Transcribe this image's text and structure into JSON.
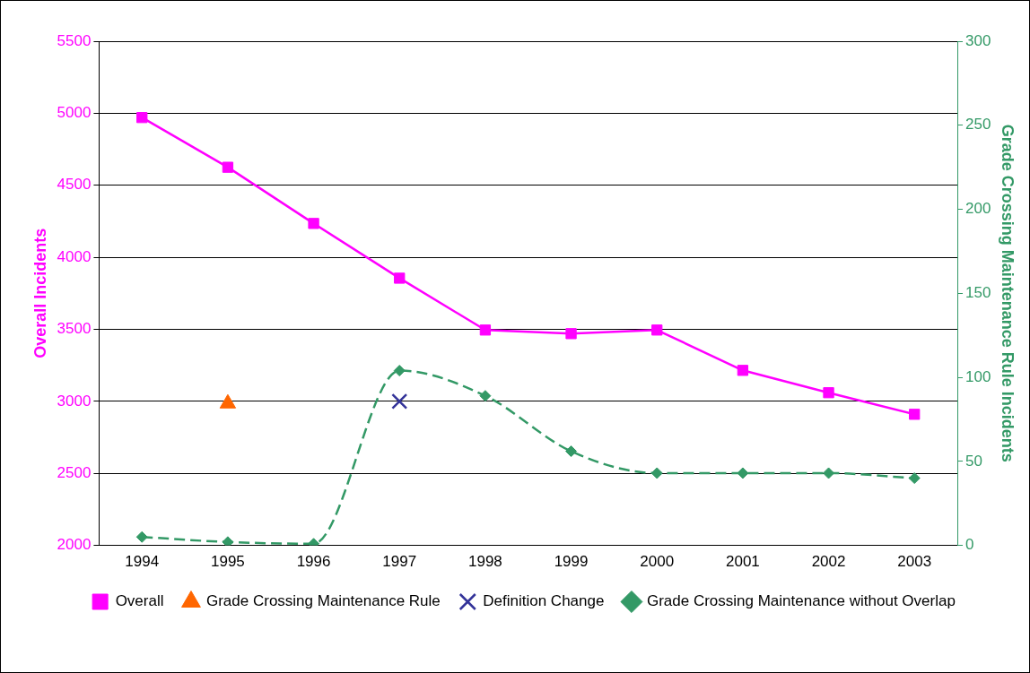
{
  "chart_data": {
    "type": "line",
    "categories": [
      "1994",
      "1995",
      "1996",
      "1997",
      "1998",
      "1999",
      "2000",
      "2001",
      "2002",
      "2003"
    ],
    "ylabel": "Overall Incidents",
    "y2label": "Grade Crossing Maintenance Rule Incidents",
    "ylim": [
      2000,
      5500
    ],
    "yticks": [
      2000,
      2500,
      3000,
      3500,
      4000,
      4500,
      5000,
      5500
    ],
    "y2lim": [
      0,
      300
    ],
    "y2ticks": [
      0,
      50,
      100,
      150,
      200,
      250,
      300
    ],
    "grid": "y",
    "legend": "bottom",
    "series": [
      {
        "name": "Overall",
        "color": "#ff00ff",
        "marker": "square",
        "line_style": "solid",
        "values": [
          4970,
          4625,
          4235,
          3855,
          3495,
          3470,
          3495,
          3215,
          3060,
          2910
        ]
      },
      {
        "name": "Grade Crossing Maintenance Rule",
        "color": "#ff6600",
        "marker": "triangle",
        "values": [
          null,
          2985,
          null,
          null,
          null,
          null,
          null,
          null,
          null,
          null
        ]
      },
      {
        "name": "Definition Change",
        "color": "#333399",
        "marker": "cross",
        "values": [
          null,
          null,
          null,
          3000,
          null,
          null,
          null,
          null,
          null,
          null
        ]
      },
      {
        "name": "Grade Crossing Maintenance without Overlap",
        "color": "#339966",
        "marker": "diamond",
        "line_style": "dashed",
        "axis": "y2",
        "values": [
          5,
          2,
          1,
          104,
          89,
          56,
          43,
          43,
          43,
          40
        ]
      }
    ]
  }
}
